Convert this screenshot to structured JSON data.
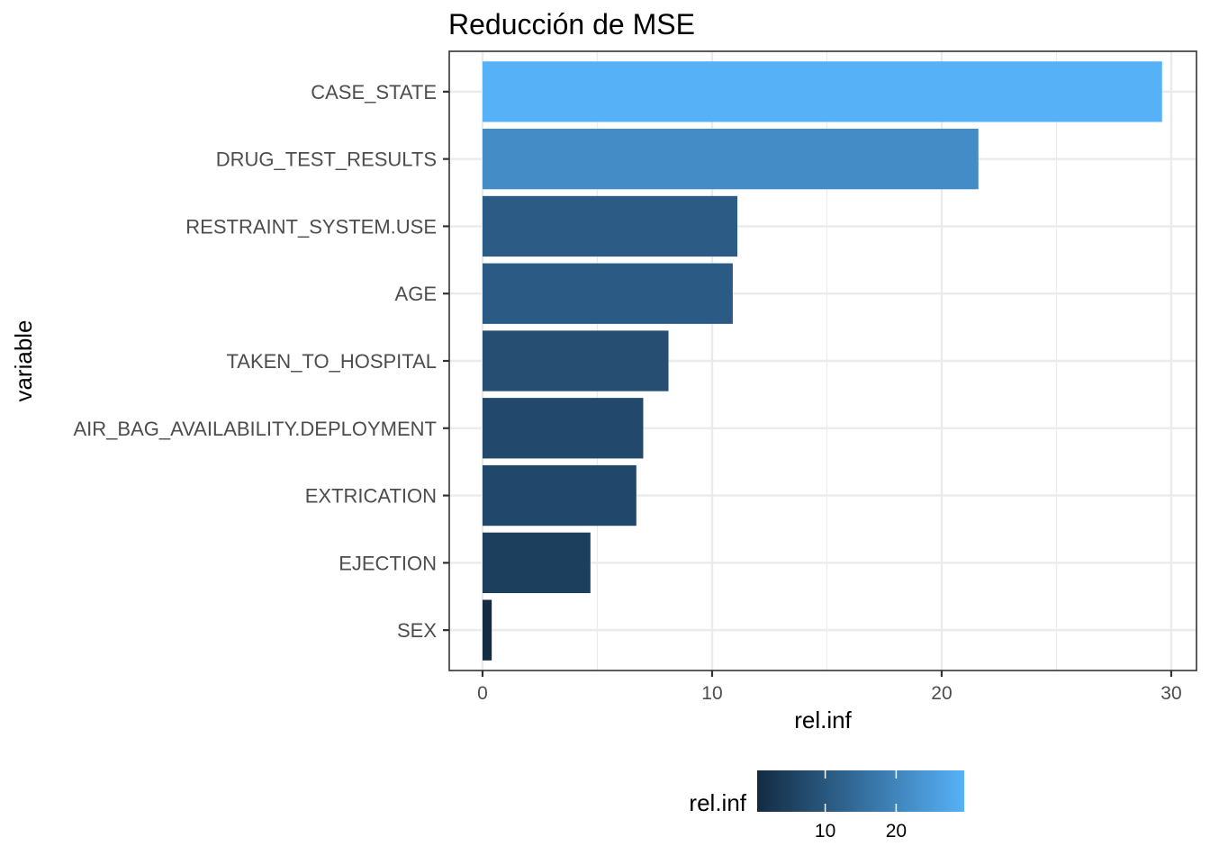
{
  "chart_data": {
    "type": "bar",
    "orientation": "horizontal",
    "title": "Reducción de MSE",
    "xlabel": "rel.inf",
    "ylabel": "variable",
    "categories": [
      "CASE_STATE",
      "DRUG_TEST_RESULTS",
      "RESTRAINT_SYSTEM.USE",
      "AGE",
      "TAKEN_TO_HOSPITAL",
      "AIR_BAG_AVAILABILITY.DEPLOYMENT",
      "EXTRICATION",
      "EJECTION",
      "SEX"
    ],
    "values": [
      29.6,
      21.6,
      11.1,
      10.9,
      8.1,
      7.0,
      6.7,
      4.7,
      0.4
    ],
    "xlim": [
      -1.45,
      31.1
    ],
    "xticks": [
      "0",
      "10",
      "20",
      "30"
    ],
    "grid": true,
    "legend": {
      "title": "rel.inf",
      "position": "bottom",
      "type": "colorbar",
      "ticks": [
        "10",
        "20"
      ],
      "range": [
        0.4,
        29.6
      ],
      "color_low": "#132b43",
      "color_high": "#56b1f7"
    }
  }
}
